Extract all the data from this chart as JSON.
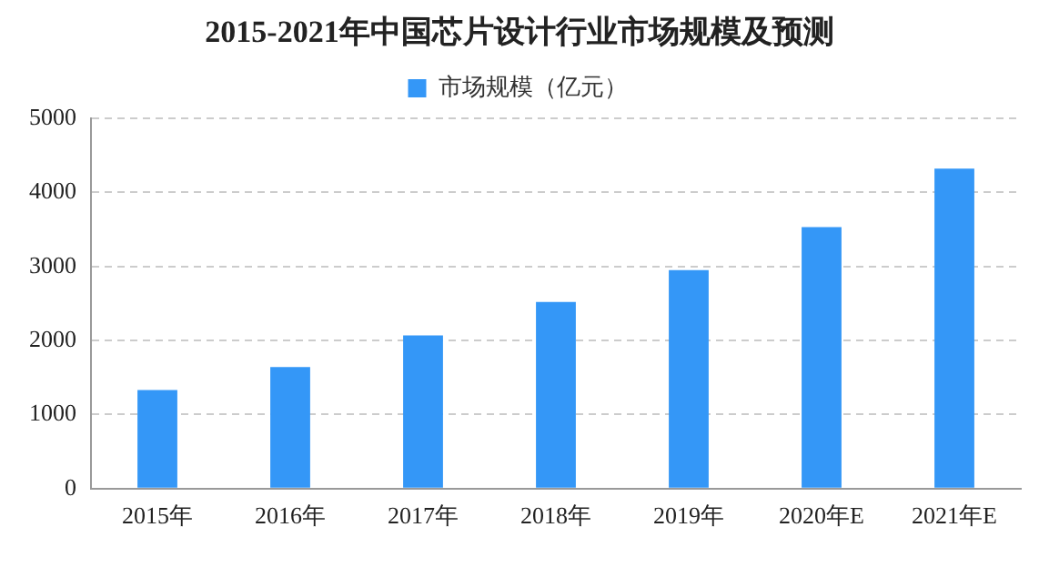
{
  "chart_data": {
    "type": "bar",
    "title": "2015-2021年中国芯片设计行业市场规模及预测",
    "categories": [
      "2015年",
      "2016年",
      "2017年",
      "2018年",
      "2019年",
      "2020年E",
      "2021年E"
    ],
    "series": [
      {
        "name": "市场规模（亿元）",
        "color": "#3497f7",
        "values": [
          1330,
          1640,
          2070,
          2520,
          2950,
          3530,
          4320
        ]
      }
    ],
    "ylim": [
      0,
      5000
    ],
    "yticks": [
      0,
      1000,
      2000,
      3000,
      4000,
      5000
    ],
    "grid": "y",
    "legend": "top"
  }
}
